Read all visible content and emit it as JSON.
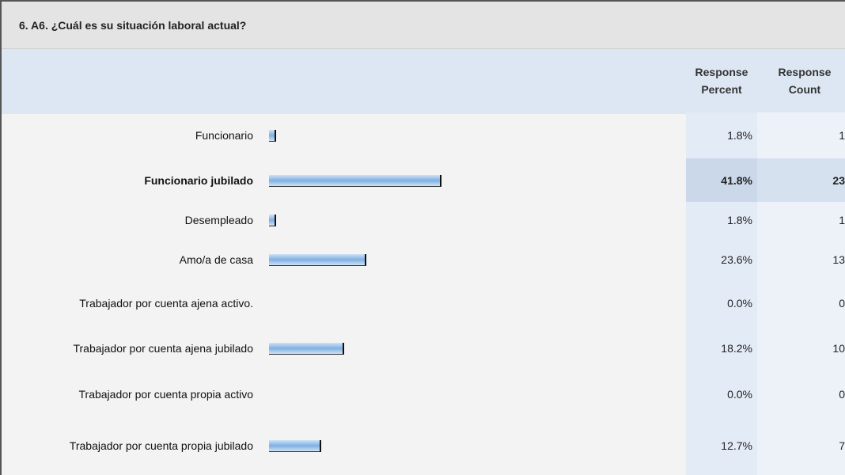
{
  "chart_data": {
    "type": "bar",
    "title": "6. A6. ¿Cuál es su situación laboral actual?",
    "percent_header": "Response Percent",
    "count_header": "Response Count",
    "categories": [
      "Funcionario",
      "Funcionario jubilado",
      "Desempleado",
      "Amo/a de casa",
      "Trabajador por cuenta ajena activo.",
      "Trabajador por cuenta ajena jubilado",
      "Trabajador por cuenta propia activo",
      "Trabajador por cuenta propia jubilado"
    ],
    "values": [
      1.8,
      41.8,
      1.8,
      23.6,
      0.0,
      18.2,
      0.0,
      12.7
    ],
    "value_labels": [
      "1.8%",
      "41.8%",
      "1.8%",
      "23.6%",
      "0.0%",
      "18.2%",
      "0.0%",
      "12.7%"
    ],
    "counts": [
      1,
      23,
      1,
      13,
      0,
      10,
      0,
      7
    ],
    "xlim": [
      0,
      100
    ],
    "color": "#7fb0e2"
  }
}
